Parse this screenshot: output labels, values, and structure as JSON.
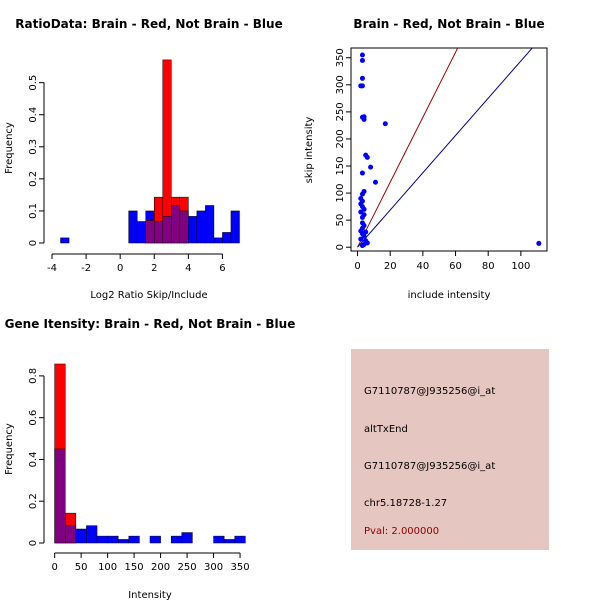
{
  "colors": {
    "red": "#ff0000",
    "blue": "#0000ff",
    "overlap": "#800080",
    "panel_bg": "#e6c6c0",
    "pval_text": "#8b0000"
  },
  "chart_data": [
    {
      "type": "bar",
      "subtype": "overlaid-histogram",
      "title": "RatioData: Brain - Red, Not Brain - Blue",
      "xlabel": "Log2 Ratio Skip/Include",
      "ylabel": "Frequency",
      "xlim": [
        -4,
        7.5
      ],
      "ylim": [
        0,
        0.58
      ],
      "xticks": [
        -4,
        -2,
        0,
        2,
        4,
        6
      ],
      "yticks": [
        0.0,
        0.1,
        0.2,
        0.3,
        0.4,
        0.5
      ],
      "series": [
        {
          "name": "Brain",
          "color": "red",
          "bins": [
            {
              "x0": 1.5,
              "x1": 2.0,
              "value": 0.071
            },
            {
              "x0": 2.0,
              "x1": 2.5,
              "value": 0.143
            },
            {
              "x0": 2.5,
              "x1": 3.0,
              "value": 0.571
            },
            {
              "x0": 3.0,
              "x1": 3.5,
              "value": 0.143
            },
            {
              "x0": 3.5,
              "x1": 4.0,
              "value": 0.143
            }
          ]
        },
        {
          "name": "Not Brain",
          "color": "blue",
          "bins": [
            {
              "x0": -3.5,
              "x1": -3.0,
              "value": 0.016
            },
            {
              "x0": 0.5,
              "x1": 1.0,
              "value": 0.1
            },
            {
              "x0": 1.0,
              "x1": 1.5,
              "value": 0.067
            },
            {
              "x0": 1.5,
              "x1": 2.0,
              "value": 0.1
            },
            {
              "x0": 2.0,
              "x1": 2.5,
              "value": 0.067
            },
            {
              "x0": 2.5,
              "x1": 3.0,
              "value": 0.083
            },
            {
              "x0": 3.0,
              "x1": 3.5,
              "value": 0.117
            },
            {
              "x0": 3.5,
              "x1": 4.0,
              "value": 0.1
            },
            {
              "x0": 4.0,
              "x1": 4.5,
              "value": 0.083
            },
            {
              "x0": 4.5,
              "x1": 5.0,
              "value": 0.1
            },
            {
              "x0": 5.0,
              "x1": 5.5,
              "value": 0.117
            },
            {
              "x0": 5.5,
              "x1": 6.0,
              "value": 0.016
            },
            {
              "x0": 6.0,
              "x1": 6.5,
              "value": 0.033
            },
            {
              "x0": 6.5,
              "x1": 7.0,
              "value": 0.1
            }
          ]
        }
      ]
    },
    {
      "type": "scatter",
      "title": "Brain - Red, Not Brain - Blue",
      "xlabel": "include intensity",
      "ylabel": "skip intensity",
      "xlim": [
        -4,
        116
      ],
      "ylim": [
        -7,
        368
      ],
      "xticks": [
        0,
        20,
        40,
        60,
        80,
        100
      ],
      "yticks": [
        0,
        50,
        100,
        150,
        200,
        250,
        300,
        350
      ],
      "lines": [
        {
          "name": "Brain fit",
          "color": "red",
          "slope": 6.0,
          "intercept": 0
        },
        {
          "name": "Not Brain fit",
          "color": "blue",
          "slope": 3.44,
          "intercept": 0
        }
      ],
      "points": [
        [
          3,
          355
        ],
        [
          3,
          345
        ],
        [
          3,
          312
        ],
        [
          2,
          298
        ],
        [
          3,
          298
        ],
        [
          3,
          240
        ],
        [
          4,
          236
        ],
        [
          4,
          241
        ],
        [
          17,
          228
        ],
        [
          5,
          170
        ],
        [
          6,
          166
        ],
        [
          8,
          148
        ],
        [
          11,
          120
        ],
        [
          3,
          137
        ],
        [
          4,
          103
        ],
        [
          3,
          98
        ],
        [
          2,
          90
        ],
        [
          3,
          85
        ],
        [
          2,
          80
        ],
        [
          3,
          75
        ],
        [
          4,
          70
        ],
        [
          2,
          65
        ],
        [
          4,
          60
        ],
        [
          3,
          55
        ],
        [
          3,
          45
        ],
        [
          4,
          40
        ],
        [
          3,
          35
        ],
        [
          2,
          30
        ],
        [
          5,
          28
        ],
        [
          3,
          25
        ],
        [
          4,
          20
        ],
        [
          2,
          15
        ],
        [
          5,
          12
        ],
        [
          6,
          8
        ],
        [
          4,
          5
        ],
        [
          3,
          3
        ],
        [
          111,
          7
        ]
      ]
    },
    {
      "type": "bar",
      "subtype": "overlaid-histogram",
      "title": "Gene Itensity: Brain - Red, Not Brain - Blue",
      "xlabel": "Intensity",
      "ylabel": "Frequency",
      "xlim": [
        -5,
        365
      ],
      "ylim": [
        0,
        0.9
      ],
      "xticks": [
        0,
        50,
        100,
        150,
        200,
        250,
        300,
        350
      ],
      "yticks": [
        0.0,
        0.2,
        0.4,
        0.6,
        0.8
      ],
      "series": [
        {
          "name": "Brain",
          "color": "red",
          "bins": [
            {
              "x0": 0,
              "x1": 20,
              "value": 0.857
            },
            {
              "x0": 20,
              "x1": 40,
              "value": 0.143
            }
          ]
        },
        {
          "name": "Not Brain",
          "color": "blue",
          "bins": [
            {
              "x0": 0,
              "x1": 20,
              "value": 0.45
            },
            {
              "x0": 20,
              "x1": 40,
              "value": 0.083
            },
            {
              "x0": 40,
              "x1": 60,
              "value": 0.067
            },
            {
              "x0": 60,
              "x1": 80,
              "value": 0.083
            },
            {
              "x0": 80,
              "x1": 100,
              "value": 0.033
            },
            {
              "x0": 100,
              "x1": 120,
              "value": 0.033
            },
            {
              "x0": 120,
              "x1": 140,
              "value": 0.017
            },
            {
              "x0": 140,
              "x1": 160,
              "value": 0.033
            },
            {
              "x0": 160,
              "x1": 180,
              "value": 0.0
            },
            {
              "x0": 180,
              "x1": 200,
              "value": 0.033
            },
            {
              "x0": 200,
              "x1": 220,
              "value": 0.0
            },
            {
              "x0": 220,
              "x1": 240,
              "value": 0.033
            },
            {
              "x0": 240,
              "x1": 260,
              "value": 0.05
            },
            {
              "x0": 260,
              "x1": 280,
              "value": 0.0
            },
            {
              "x0": 280,
              "x1": 300,
              "value": 0.0
            },
            {
              "x0": 300,
              "x1": 320,
              "value": 0.033
            },
            {
              "x0": 320,
              "x1": 340,
              "value": 0.017
            },
            {
              "x0": 340,
              "x1": 360,
              "value": 0.033
            }
          ]
        }
      ]
    }
  ],
  "info_panel": {
    "probe_id": "G7110787@J935256@i_at",
    "event_type": "altTxEnd",
    "probe_id_2": "G7110787@J935256@i_at",
    "location": "chr5.18728-1.27",
    "pval": "Pval: 2.000000"
  }
}
